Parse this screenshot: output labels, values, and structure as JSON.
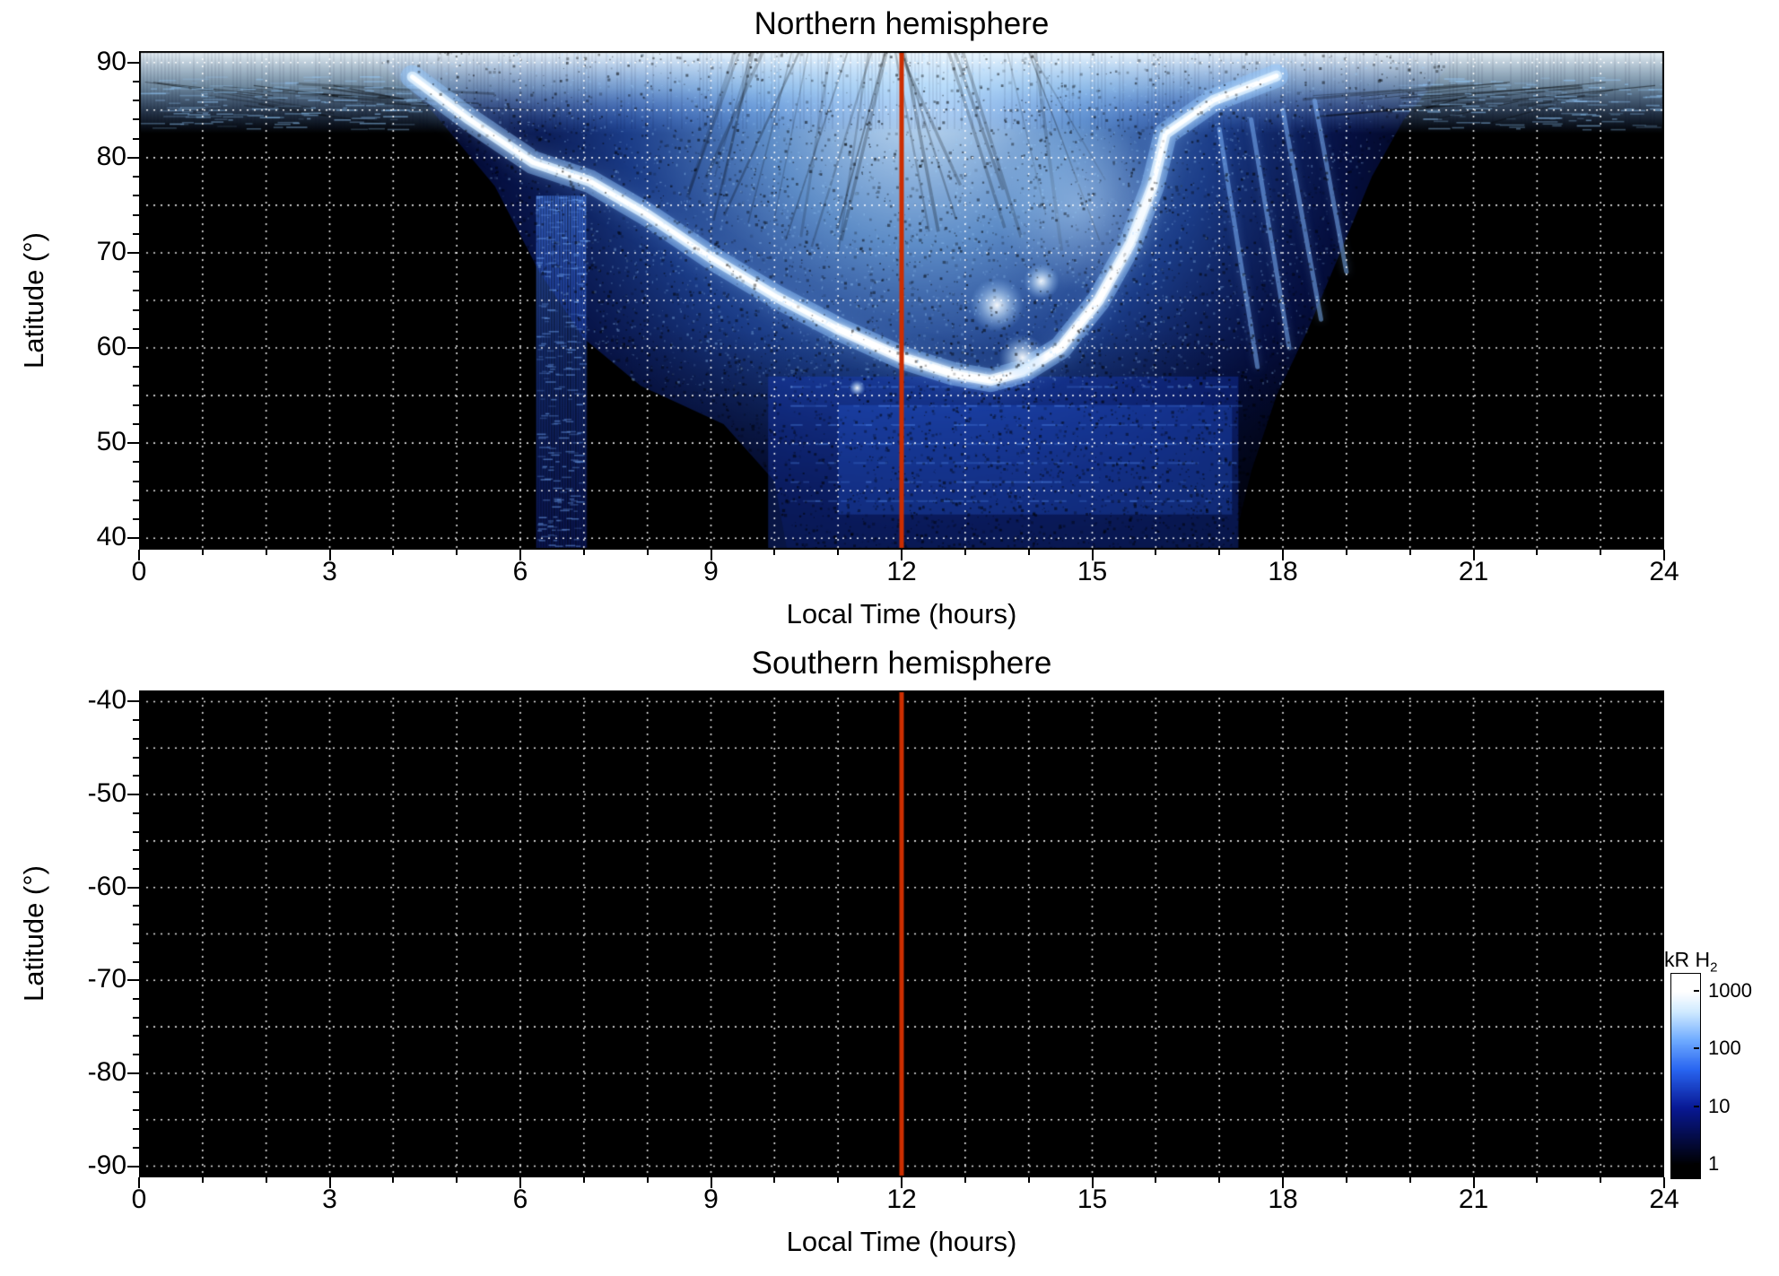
{
  "chart_data": [
    {
      "type": "heatmap",
      "title": "Northern hemisphere",
      "xlabel": "Local Time (hours)",
      "ylabel": "Latitude (°)",
      "xlim": [
        0,
        24
      ],
      "ylim": [
        40,
        90
      ],
      "ylim_padded": [
        38.8,
        91.2
      ],
      "xticks": [
        0,
        3,
        6,
        9,
        12,
        15,
        18,
        21,
        24
      ],
      "yticks": [
        90,
        80,
        70,
        60,
        50,
        40
      ],
      "x_minor_tick_interval": 1,
      "y_minor_tick_interval": 2,
      "grid": {
        "visible": true,
        "style": "dotted",
        "color": "#ffffff",
        "x_spacing_hours": 1,
        "y_spacing_deg": 5
      },
      "noon_line": {
        "x": 12,
        "color": "#cc2e00"
      },
      "background_color": "#000000",
      "features": [
        {
          "name": "polar-cap-emission-band",
          "shape": "band",
          "lt_range": [
            0,
            24
          ],
          "lat_range": [
            84,
            90
          ],
          "peak_kR": 900
        },
        {
          "name": "dayside-diffuse-emission",
          "shape": "region",
          "peak_kR": 150,
          "boundary_left_lat_lt": [
            [
              91.2,
              3.6
            ],
            [
              85,
              4.6
            ],
            [
              77,
              5.6
            ],
            [
              68,
              6.3
            ],
            [
              61,
              7.0
            ],
            [
              56,
              7.9
            ],
            [
              52,
              9.2
            ],
            [
              46,
              10.0
            ],
            [
              38.8,
              10.2
            ]
          ],
          "boundary_right_lat_lt": [
            [
              91.2,
              20.8
            ],
            [
              84,
              19.9
            ],
            [
              78,
              19.4
            ],
            [
              70,
              18.9
            ],
            [
              62,
              18.4
            ],
            [
              55,
              17.9
            ],
            [
              47,
              17.5
            ],
            [
              38.8,
              17.2
            ]
          ]
        },
        {
          "name": "main-auroral-arc",
          "shape": "curve",
          "peak_kR": 1000,
          "points_lt_lat": [
            [
              4.3,
              88.5
            ],
            [
              5.2,
              84
            ],
            [
              6.2,
              79.5
            ],
            [
              7.1,
              77.5
            ],
            [
              8,
              74
            ],
            [
              9,
              69.5
            ],
            [
              10,
              65.5
            ],
            [
              11,
              62
            ],
            [
              12,
              59
            ],
            [
              12.8,
              57.3
            ],
            [
              13.4,
              56.6
            ],
            [
              13.9,
              57.5
            ],
            [
              14.5,
              60
            ],
            [
              15.1,
              65
            ],
            [
              15.6,
              71
            ],
            [
              15.95,
              77
            ],
            [
              16.15,
              82.5
            ],
            [
              16.9,
              86
            ],
            [
              17.9,
              88.6
            ]
          ]
        },
        {
          "name": "bright-spots",
          "shape": "spots",
          "peak_kR": 1000,
          "spots_lt_lat_r": [
            [
              13.5,
              64.5,
              30
            ],
            [
              14.2,
              67,
              20
            ],
            [
              13.9,
              59,
              26
            ],
            [
              11.3,
              55.8,
              9
            ]
          ]
        },
        {
          "name": "dawn-striated-column",
          "shape": "band",
          "lt_range": [
            6.25,
            7.05
          ],
          "lat_range": [
            38.8,
            76
          ],
          "peak_kR": 20,
          "texture": "vertical-striations"
        },
        {
          "name": "low-latitude-diffuse-band",
          "shape": "band",
          "lt_range": [
            9.9,
            17.3
          ],
          "lat_range": [
            38.8,
            57
          ],
          "peak_kR": 10,
          "texture": "speckled-horizontal-banding"
        },
        {
          "name": "dusk-streaks",
          "shape": "streaks",
          "peak_kR": 120,
          "lines_lt_lat": [
            [
              [
                17.0,
                83
              ],
              [
                17.6,
                58
              ]
            ],
            [
              [
                17.5,
                84
              ],
              [
                18.1,
                60
              ]
            ],
            [
              [
                18.0,
                85
              ],
              [
                18.6,
                63
              ]
            ],
            [
              [
                18.5,
                86
              ],
              [
                19.0,
                68
              ]
            ]
          ]
        }
      ]
    },
    {
      "type": "heatmap",
      "title": "Southern hemisphere",
      "xlabel": "Local Time (hours)",
      "ylabel": "Latitude (°)",
      "xlim": [
        0,
        24
      ],
      "ylim": [
        -90,
        -40
      ],
      "ylim_padded": [
        -91.2,
        -38.8
      ],
      "xticks": [
        0,
        3,
        6,
        9,
        12,
        15,
        18,
        21,
        24
      ],
      "yticks": [
        -40,
        -50,
        -60,
        -70,
        -80,
        -90
      ],
      "x_minor_tick_interval": 1,
      "y_minor_tick_interval": 2,
      "grid": {
        "visible": true,
        "style": "dotted",
        "color": "#ffffff",
        "x_spacing_hours": 1,
        "y_spacing_deg": 5
      },
      "noon_line": {
        "x": 12,
        "color": "#cc2e00"
      },
      "background_color": "#000000",
      "features": []
    }
  ],
  "colorbar": {
    "label_main": "kR H",
    "label_sub": "2",
    "scale": "log",
    "range": [
      1,
      1000
    ],
    "ticks": [
      1000,
      100,
      10,
      1
    ],
    "colormap_stops": [
      {
        "t": 0,
        "color": "#000000"
      },
      {
        "t": 0.33,
        "color": "#081894"
      },
      {
        "t": 0.55,
        "color": "#2864f0"
      },
      {
        "t": 0.72,
        "color": "#6eaaff"
      },
      {
        "t": 0.88,
        "color": "#cde9ff"
      },
      {
        "t": 1,
        "color": "#ffffff"
      }
    ]
  }
}
